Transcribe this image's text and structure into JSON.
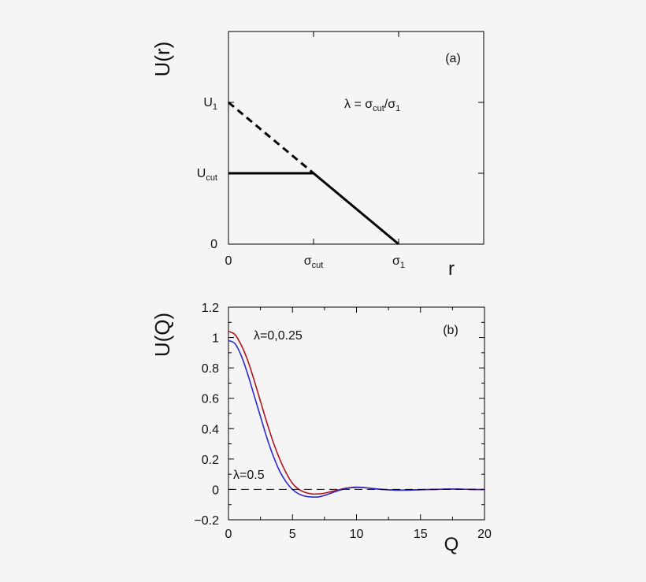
{
  "chart_data": [
    {
      "type": "line",
      "panel_label": "(a)",
      "ylabel": "U(r)",
      "xlabel": "r",
      "annotation": {
        "base": "λ = σ",
        "sub1": "cut",
        "mid": "/σ",
        "sub2": "1"
      },
      "y_ticks": [
        {
          "base": "U",
          "sub": "1"
        },
        {
          "base": "U",
          "sub": "cut"
        },
        {
          "base": "0",
          "sub": ""
        }
      ],
      "x_ticks": [
        {
          "base": "0",
          "sub": ""
        },
        {
          "base": "σ",
          "sub": "cut"
        },
        {
          "base": "σ",
          "sub": "1"
        }
      ],
      "xlim": [
        0,
        3
      ],
      "ylim": [
        0,
        3
      ],
      "ytick_values": [
        2,
        1,
        0
      ],
      "xtick_values": [
        0,
        1,
        2
      ],
      "series": [
        {
          "style": "dashed",
          "x": [
            0,
            1
          ],
          "y": [
            2,
            1
          ]
        },
        {
          "style": "solid",
          "x": [
            0,
            1,
            2
          ],
          "y": [
            1,
            1,
            0
          ]
        }
      ],
      "grid": false
    },
    {
      "type": "line",
      "panel_label": "(b)",
      "ylabel": "U(Q)",
      "xlabel": "Q",
      "xlim": [
        0,
        20
      ],
      "ylim": [
        -0.2,
        1.2
      ],
      "x_ticks": [
        "0",
        "5",
        "10",
        "15",
        "20"
      ],
      "y_ticks": [
        "1.2",
        "1",
        "0.8",
        "0.6",
        "0.4",
        "0.2",
        "0",
        "−0.2"
      ],
      "annotations": [
        "λ=0,0.25",
        "λ=0.5"
      ],
      "series": [
        {
          "color": "#b0141c",
          "x": [
            0,
            0.5,
            1,
            1.5,
            2,
            2.5,
            3,
            3.5,
            4,
            4.5,
            5,
            5.5,
            6,
            6.5,
            7,
            7.5,
            8,
            8.5,
            9,
            9.5,
            10,
            10.5,
            11,
            11.5,
            12,
            13,
            14,
            15,
            16,
            17,
            18,
            19,
            20
          ],
          "y": [
            1.04,
            1.02,
            0.95,
            0.85,
            0.72,
            0.58,
            0.44,
            0.31,
            0.2,
            0.11,
            0.04,
            0.0,
            -0.02,
            -0.03,
            -0.03,
            -0.025,
            -0.015,
            -0.005,
            0.005,
            0.012,
            0.015,
            0.013,
            0.008,
            0.004,
            0.0,
            -0.004,
            -0.004,
            -0.002,
            0.0,
            0.002,
            0.002,
            0.0,
            -0.001
          ]
        },
        {
          "color": "#2a2ad0",
          "x": [
            0,
            0.5,
            1,
            1.5,
            2,
            2.5,
            3,
            3.5,
            4,
            4.5,
            5,
            5.5,
            6,
            6.5,
            7,
            7.5,
            8,
            8.5,
            9,
            9.5,
            10,
            10.5,
            11,
            11.5,
            12,
            13,
            14,
            15,
            16,
            17,
            18,
            19,
            20
          ],
          "y": [
            0.98,
            0.96,
            0.88,
            0.76,
            0.62,
            0.48,
            0.34,
            0.22,
            0.12,
            0.05,
            0.0,
            -0.03,
            -0.045,
            -0.05,
            -0.05,
            -0.04,
            -0.025,
            -0.01,
            0.002,
            0.01,
            0.013,
            0.012,
            0.008,
            0.004,
            0.0,
            -0.005,
            -0.005,
            -0.002,
            0.0,
            0.002,
            0.002,
            0.0,
            -0.001
          ]
        },
        {
          "color": "#000000",
          "style": "dashed",
          "x": [
            0,
            20
          ],
          "y": [
            0,
            0
          ]
        }
      ],
      "grid": false
    }
  ]
}
